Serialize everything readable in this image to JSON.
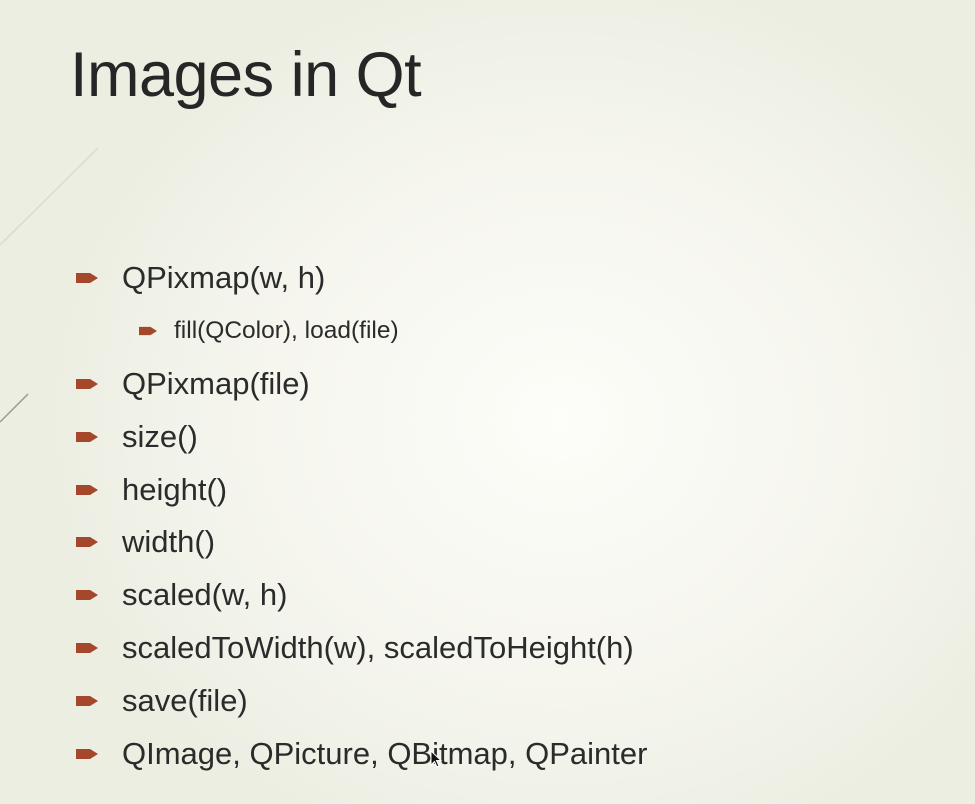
{
  "slide": {
    "title": "Images in Qt",
    "accent_color": "#a5472a",
    "bullets": [
      {
        "text": "QPixmap(w, h)",
        "level": 1
      },
      {
        "text": "fill(QColor), load(file)",
        "level": 2
      },
      {
        "text": "QPixmap(file)",
        "level": 1
      },
      {
        "text": "size()",
        "level": 1
      },
      {
        "text": "height()",
        "level": 1
      },
      {
        "text": "width()",
        "level": 1
      },
      {
        "text": "scaled(w, h)",
        "level": 1
      },
      {
        "text": "scaledToWidth(w), scaledToHeight(h)",
        "level": 1
      },
      {
        "text": "save(file)",
        "level": 1
      },
      {
        "text": "QImage, QPicture, QBitmap, QPainter",
        "level": 1
      }
    ]
  }
}
